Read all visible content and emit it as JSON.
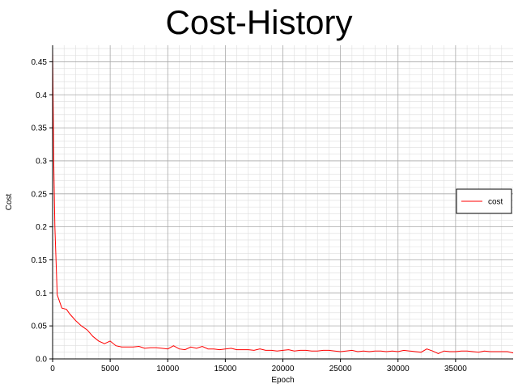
{
  "chart_data": {
    "type": "line",
    "title": "Cost-History",
    "xlabel": "Epoch",
    "ylabel": "Cost",
    "xlim": [
      0,
      40000
    ],
    "ylim": [
      0,
      0.475
    ],
    "x_ticks": [
      0,
      5000,
      10000,
      15000,
      20000,
      25000,
      30000,
      35000
    ],
    "x_tick_labels": [
      "0",
      "5000",
      "10000",
      "15000",
      "20000",
      "25000",
      "30000",
      "35000"
    ],
    "y_ticks": [
      0,
      0.05,
      0.1,
      0.15,
      0.2,
      0.25,
      0.3,
      0.35,
      0.4,
      0.45
    ],
    "y_tick_labels": [
      "0.0",
      "0.05",
      "0.1",
      "0.15",
      "0.2",
      "0.25",
      "0.3",
      "0.35",
      "0.4",
      "0.45"
    ],
    "grid": true,
    "legend_position": "right",
    "series": [
      {
        "name": "cost",
        "color": "#ff0000",
        "x": [
          0,
          100,
          200,
          400,
          800,
          1200,
          1500,
          2000,
          2500,
          3000,
          3500,
          4000,
          4500,
          5000,
          5500,
          6000,
          6500,
          7000,
          7500,
          8000,
          8500,
          9000,
          9500,
          10000,
          10500,
          11000,
          11500,
          12000,
          12500,
          13000,
          13500,
          14000,
          14500,
          15000,
          15500,
          16000,
          16500,
          17000,
          17500,
          18000,
          18500,
          19000,
          19500,
          20000,
          20500,
          21000,
          21500,
          22000,
          22500,
          23000,
          23500,
          24000,
          24500,
          25000,
          25500,
          26000,
          26500,
          27000,
          27500,
          28000,
          28500,
          29000,
          29500,
          30000,
          30500,
          31000,
          31500,
          32000,
          32500,
          33000,
          33500,
          34000,
          34500,
          35000,
          35500,
          36000,
          36500,
          37000,
          37500,
          38000,
          38500,
          39000,
          39500,
          40000
        ],
        "values": [
          0.47,
          0.3,
          0.2,
          0.097,
          0.077,
          0.075,
          0.068,
          0.058,
          0.05,
          0.044,
          0.034,
          0.027,
          0.023,
          0.027,
          0.02,
          0.018,
          0.018,
          0.018,
          0.019,
          0.016,
          0.017,
          0.017,
          0.016,
          0.015,
          0.02,
          0.015,
          0.014,
          0.018,
          0.016,
          0.019,
          0.015,
          0.015,
          0.014,
          0.015,
          0.016,
          0.014,
          0.014,
          0.014,
          0.013,
          0.015,
          0.013,
          0.013,
          0.012,
          0.013,
          0.014,
          0.012,
          0.013,
          0.013,
          0.012,
          0.012,
          0.013,
          0.013,
          0.012,
          0.011,
          0.012,
          0.013,
          0.011,
          0.012,
          0.011,
          0.012,
          0.012,
          0.011,
          0.012,
          0.011,
          0.013,
          0.012,
          0.011,
          0.01,
          0.015,
          0.012,
          0.008,
          0.012,
          0.011,
          0.011,
          0.012,
          0.012,
          0.011,
          0.01,
          0.012,
          0.011,
          0.011,
          0.011,
          0.011,
          0.009
        ]
      }
    ]
  }
}
